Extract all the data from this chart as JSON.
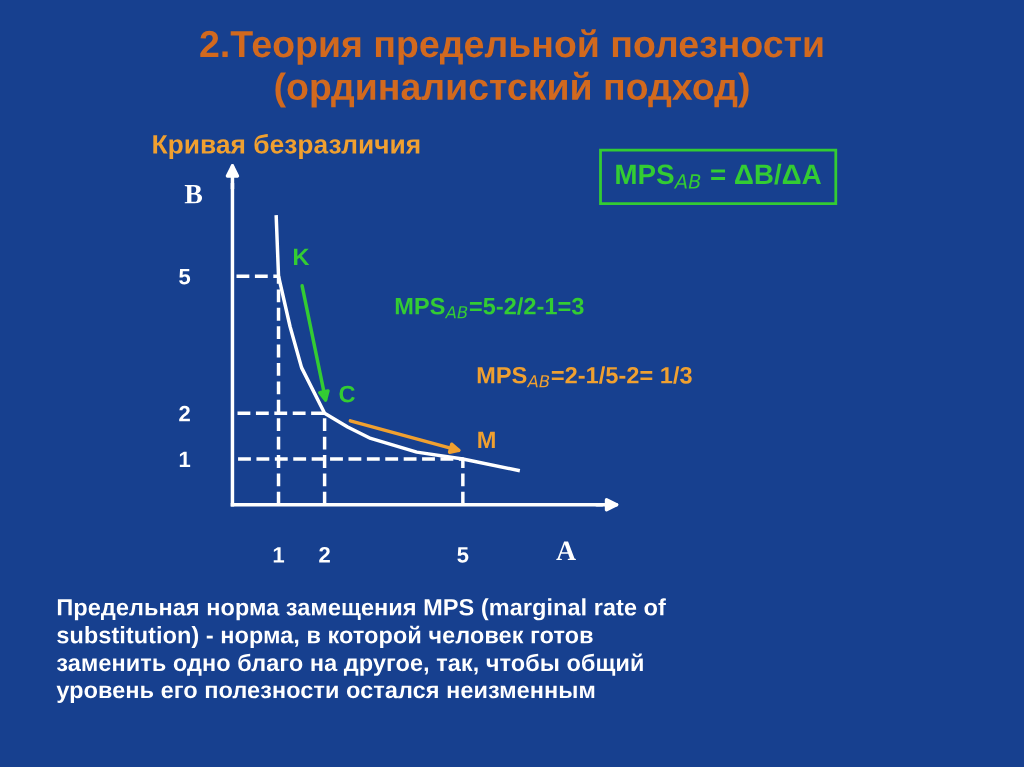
{
  "chart_data": {
    "type": "line",
    "title": "2.Теория предельной полезности\n(ординалистский подход)",
    "subtitle": "Кривая безразличия",
    "xlabel": "A",
    "ylabel": "B",
    "series": [
      {
        "color": "#ffffff",
        "x": [
          0.95,
          1,
          1.25,
          1.5,
          2,
          2.5,
          3,
          4,
          5,
          6.2
        ],
        "values": [
          6.3,
          5,
          3.9,
          3,
          2,
          1.7,
          1.45,
          1.15,
          1,
          0.75
        ]
      },
      {
        "color": "#ffffff",
        "line_style": "dashed",
        "x": [
          1,
          1,
          0
        ],
        "values": [
          0,
          5,
          5
        ]
      },
      {
        "color": "#ffffff",
        "line_style": "dashed",
        "x": [
          2,
          2,
          0
        ],
        "values": [
          0,
          2,
          2
        ]
      },
      {
        "color": "#ffffff",
        "line_style": "dashed",
        "x": [
          5,
          5,
          0
        ],
        "values": [
          0,
          1,
          1
        ]
      }
    ],
    "xlim": [
      0,
      8
    ],
    "ylim": [
      0,
      7
    ],
    "xticks": [
      1,
      2,
      5
    ],
    "yticks": [
      1,
      2,
      5
    ],
    "grid": false,
    "legend": false,
    "marker": "none",
    "line_style": "solid",
    "annotations": [
      {
        "text": "K",
        "x": 1,
        "y": 5
      },
      {
        "text": "C",
        "x": 2,
        "y": 2
      },
      {
        "text": "M",
        "x": 5,
        "y": 1
      },
      "MPS$_{AB}$ = ΔB/ΔA",
      "MPS$_{AB}$=5-2/2-1=3",
      "MPS$_{AB}$=2-1/5-2= 1/3",
      "Предельная норма замещения MPS (marginal rate of\nsubstitution) - норма, в которой человек готов\nзаменить одно благо на другое, так, чтобы общий\nуровень его полезности остался неизменным"
    ]
  }
}
